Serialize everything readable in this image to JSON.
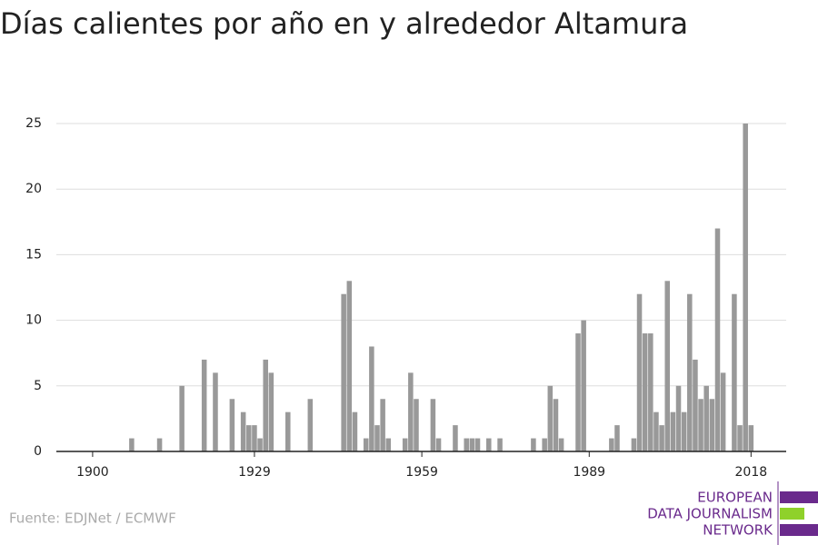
{
  "chart_data": {
    "type": "bar",
    "title": "Días calientes por año en y alrededor Altamura",
    "x": [
      1907,
      1912,
      1916,
      1920,
      1922,
      1925,
      1927,
      1928,
      1929,
      1930,
      1931,
      1932,
      1935,
      1939,
      1945,
      1946,
      1947,
      1949,
      1950,
      1951,
      1952,
      1953,
      1956,
      1957,
      1958,
      1961,
      1962,
      1965,
      1967,
      1968,
      1969,
      1971,
      1973,
      1979,
      1981,
      1982,
      1983,
      1984,
      1987,
      1988,
      1993,
      1994,
      1997,
      1998,
      1999,
      2000,
      2001,
      2002,
      2003,
      2004,
      2005,
      2006,
      2007,
      2008,
      2009,
      2010,
      2011,
      2012,
      2013,
      2015,
      2016,
      2017,
      2018
    ],
    "values": [
      1,
      1,
      5,
      7,
      6,
      4,
      3,
      2,
      2,
      1,
      7,
      6,
      3,
      4,
      12,
      13,
      3,
      1,
      8,
      2,
      4,
      1,
      1,
      6,
      4,
      4,
      1,
      2,
      1,
      1,
      1,
      1,
      1,
      1,
      1,
      5,
      4,
      1,
      9,
      10,
      1,
      2,
      1,
      12,
      9,
      9,
      3,
      2,
      13,
      3,
      5,
      3,
      12,
      7,
      4,
      5,
      4,
      17,
      6,
      12,
      2,
      25,
      2
    ],
    "color": "#999999",
    "xlim": [
      1893.5,
      2024.3
    ],
    "xticks": [
      1900,
      1929,
      1959,
      1989,
      2018
    ],
    "ylim": [
      0,
      25
    ],
    "yticks": [
      0,
      5,
      10,
      15,
      20,
      25
    ],
    "grid": true
  },
  "source": "Fuente: EDJNet / ECMWF",
  "logo": [
    "EUROPEAN",
    "DATA JOURNALISM",
    "NETWORK"
  ]
}
